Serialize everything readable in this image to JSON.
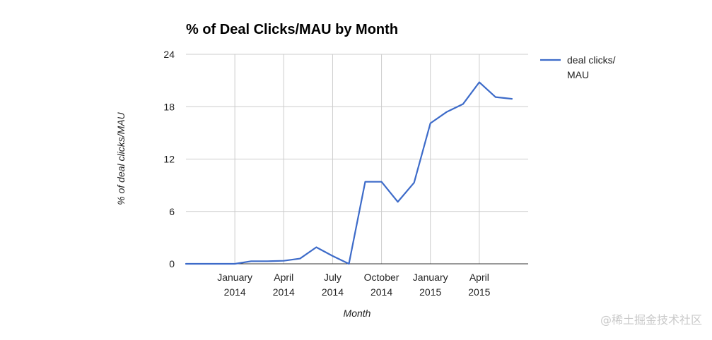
{
  "watermark": "@稀土掘金技术社区",
  "colors": {
    "series": "#3d6bc9",
    "grid": "#cccccc",
    "baseline": "#333333"
  },
  "chart_data": {
    "type": "line",
    "title": "% of Deal Clicks/MAU by Month",
    "xlabel": "Month",
    "ylabel": "% of deal clicks/MAU",
    "ylim": [
      0,
      24
    ],
    "xlim": [
      "2013-10-01",
      "2015-07-01"
    ],
    "yticks": [
      0,
      6,
      12,
      18,
      24
    ],
    "xticks": [
      {
        "date": "2014-01-01",
        "line1": "January",
        "line2": "2014"
      },
      {
        "date": "2014-04-01",
        "line1": "April",
        "line2": "2014"
      },
      {
        "date": "2014-07-01",
        "line1": "July",
        "line2": "2014"
      },
      {
        "date": "2014-10-01",
        "line1": "October",
        "line2": "2014"
      },
      {
        "date": "2015-01-01",
        "line1": "January",
        "line2": "2015"
      },
      {
        "date": "2015-04-01",
        "line1": "April",
        "line2": "2015"
      }
    ],
    "grid": true,
    "legend_position": "right",
    "series": [
      {
        "name": "deal clicks/ MAU",
        "legend_lines": [
          "deal clicks/",
          "MAU"
        ],
        "points": [
          {
            "x": "2013-10-01",
            "y": 0
          },
          {
            "x": "2013-11-01",
            "y": 0
          },
          {
            "x": "2013-12-01",
            "y": 0
          },
          {
            "x": "2014-01-01",
            "y": 0
          },
          {
            "x": "2014-02-01",
            "y": 0.3
          },
          {
            "x": "2014-03-01",
            "y": 0.3
          },
          {
            "x": "2014-04-01",
            "y": 0.35
          },
          {
            "x": "2014-05-01",
            "y": 0.6
          },
          {
            "x": "2014-06-01",
            "y": 1.9
          },
          {
            "x": "2014-07-01",
            "y": 0.9
          },
          {
            "x": "2014-08-01",
            "y": 0
          },
          {
            "x": "2014-09-01",
            "y": 9.4
          },
          {
            "x": "2014-10-01",
            "y": 9.4
          },
          {
            "x": "2014-11-01",
            "y": 7.1
          },
          {
            "x": "2014-12-01",
            "y": 9.3
          },
          {
            "x": "2015-01-01",
            "y": 16.1
          },
          {
            "x": "2015-02-01",
            "y": 17.4
          },
          {
            "x": "2015-03-01",
            "y": 18.3
          },
          {
            "x": "2015-04-01",
            "y": 20.8
          },
          {
            "x": "2015-05-01",
            "y": 19.1
          },
          {
            "x": "2015-06-01",
            "y": 18.9
          }
        ]
      }
    ]
  }
}
